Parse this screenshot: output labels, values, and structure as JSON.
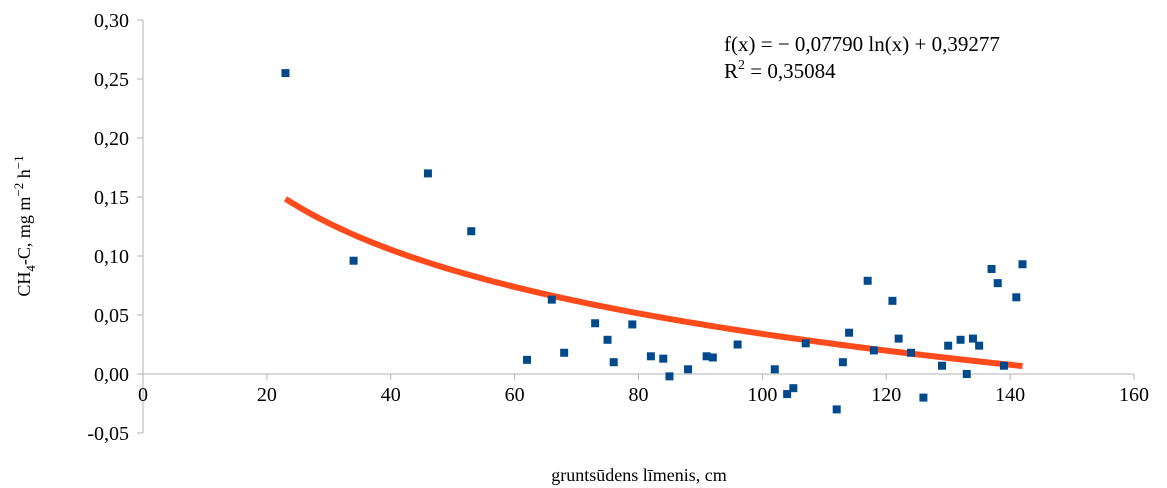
{
  "chart_data": {
    "type": "scatter",
    "xlabel": "gruntsūdens līmenis, cm",
    "ylabel": {
      "part1": "CH",
      "sub": "4",
      "part2": "-C, mg m",
      "sup1": "−2",
      "part3": " h",
      "sup2": "−1"
    },
    "xlim": [
      0,
      160
    ],
    "ylim": [
      -0.05,
      0.3
    ],
    "x_ticks": [
      0,
      20,
      40,
      60,
      80,
      100,
      120,
      140,
      160
    ],
    "x_tick_labels": [
      "0",
      "20",
      "40",
      "60",
      "80",
      "100",
      "120",
      "140",
      "160"
    ],
    "y_ticks": [
      -0.05,
      0.0,
      0.05,
      0.1,
      0.15,
      0.2,
      0.25,
      0.3
    ],
    "y_tick_labels": [
      "-0,05",
      "0,00",
      "0,05",
      "0,10",
      "0,15",
      "0,20",
      "0,25",
      "0,30"
    ],
    "grid": false,
    "marker_color": "#004a8c",
    "trend_color": "#ff4a1c",
    "points": [
      [
        23,
        0.255
      ],
      [
        34,
        0.096
      ],
      [
        46,
        0.17
      ],
      [
        53,
        0.121
      ],
      [
        62,
        0.012
      ],
      [
        66,
        0.063
      ],
      [
        68,
        0.018
      ],
      [
        73,
        0.043
      ],
      [
        75,
        0.029
      ],
      [
        76,
        0.01
      ],
      [
        79,
        0.042
      ],
      [
        82,
        0.015
      ],
      [
        84,
        0.013
      ],
      [
        85,
        -0.002
      ],
      [
        88,
        0.004
      ],
      [
        91,
        0.015
      ],
      [
        92,
        0.014
      ],
      [
        96,
        0.025
      ],
      [
        102,
        0.004
      ],
      [
        104,
        -0.017
      ],
      [
        105,
        -0.012
      ],
      [
        107,
        0.026
      ],
      [
        112,
        -0.03
      ],
      [
        113,
        0.01
      ],
      [
        114,
        0.035
      ],
      [
        117,
        0.079
      ],
      [
        118,
        0.02
      ],
      [
        121,
        0.062
      ],
      [
        122,
        0.03
      ],
      [
        124,
        0.018
      ],
      [
        126,
        -0.02
      ],
      [
        129,
        0.007
      ],
      [
        130,
        0.024
      ],
      [
        132,
        0.029
      ],
      [
        133,
        0.0
      ],
      [
        134,
        0.03
      ],
      [
        135,
        0.024
      ],
      [
        137,
        0.089
      ],
      [
        138,
        0.077
      ],
      [
        139,
        0.007
      ],
      [
        141,
        0.065
      ],
      [
        142,
        0.093
      ]
    ],
    "trendline": {
      "type": "logarithmic",
      "a": -0.0779,
      "b": 0.39277,
      "x_from": 23,
      "x_to": 142
    },
    "equation": {
      "line1": "f(x) = − 0,07790 ln(x) + 0,39277",
      "line2_prefix": "R",
      "line2_sup": "2",
      "line2_suffix": " = 0,35084"
    }
  }
}
